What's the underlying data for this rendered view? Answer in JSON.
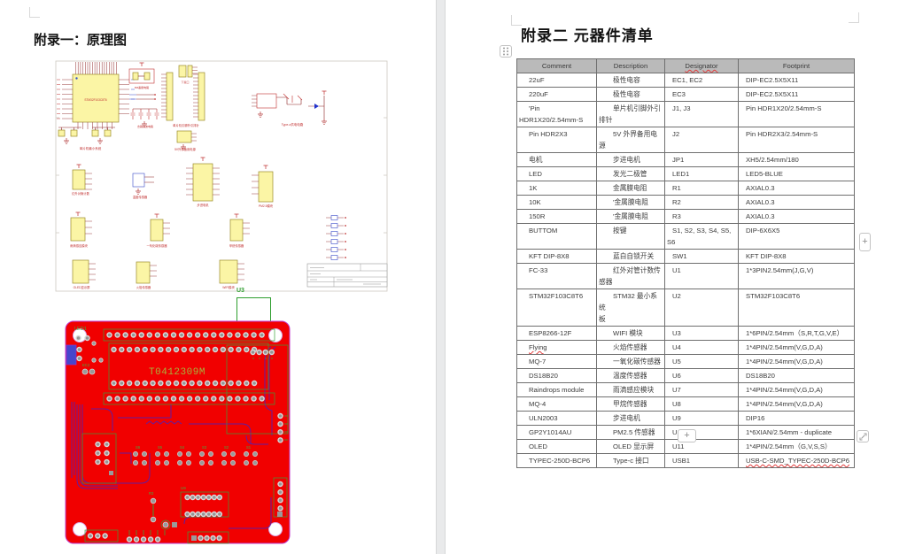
{
  "left_page": {
    "title": "附录一：原理图",
    "schematic": {
      "mcu_label": "STM32F103C8T6",
      "labels": {
        "system": "单片机最小系统",
        "download": "下载口",
        "crystal": "8M晶振电路",
        "decouple": "去耦滤波电路",
        "headers": "单片机引脚外引排针",
        "power5v": "5V外界备用电源",
        "typec": "Type-c供电电路",
        "ir": "红外对管计数",
        "temp": "温度传感器",
        "stepper": "步进电机",
        "pm25": "PM2.5模块",
        "rain": "雨滴感应模块",
        "co": "一氧化碳传感器",
        "methane": "甲烷传感器",
        "keys": "按键电路",
        "oled": "OLED显示屏",
        "flame": "火焰传感器",
        "wifi": "WIFI模块"
      }
    },
    "pcb": {
      "callout": "U3",
      "board_text": "T0412309M",
      "led_label": "LED1",
      "ec2_label": "EC2",
      "u9_label": "U9",
      "r3_label": "R3",
      "button_labels": [
        "S6",
        "S5",
        "S4",
        "S3",
        "S2",
        "S1"
      ]
    }
  },
  "right_page": {
    "title": "附录二 元器件清单",
    "table": {
      "headers": [
        "Comment",
        "Description",
        "Designator",
        "Footprint"
      ],
      "header_misspelled": [
        2
      ],
      "rows": [
        [
          "22uF",
          "极性电容",
          "EC1, EC2",
          "DIP-EC2.5X5X11"
        ],
        [
          "220uF",
          "极性电容",
          "EC3",
          "DIP-EC2.5X5X11"
        ],
        [
          "'Pin\nHDR1X20/2.54mm-S",
          "单片机引脚外引\n排针",
          "J1, J3",
          "Pin HDR1X20/2.54mm-S"
        ],
        [
          "Pin HDR2X3",
          "5V 外界备用电源",
          "J2",
          "Pin HDR2X3/2.54mm-S"
        ],
        [
          "电机",
          "步进电机",
          "JP1",
          "XH5/2.54mm/180"
        ],
        [
          "LED",
          "发光二极管",
          "LED1",
          "LED5-BLUE"
        ],
        [
          "1K",
          "金属膜电阻",
          "R1",
          "AXIAL0.3"
        ],
        [
          "10K",
          "'金属膜电阻",
          "R2",
          "AXIAL0.3"
        ],
        [
          "150R",
          "'金属膜电阻",
          "R3",
          "AXIAL0.3"
        ],
        [
          "BUTTOM",
          "按键",
          "S1, S2, S3, S4, S5,\nS6",
          "DIP-6X6X5"
        ],
        [
          "KFT DIP-8X8",
          "蓝白自锁开关",
          "SW1",
          "KFT DIP-8X8"
        ],
        [
          "FC-33",
          "红外对管计数传\n感器",
          "U1",
          "1*3PIN2.54mm(J,G,V)"
        ],
        [
          "STM32F103C8T6",
          "STM32 最小系统\n板",
          "U2",
          "STM32F103C8T6"
        ],
        [
          "ESP8266-12F",
          "WIFI 模块",
          "U3",
          "1*6PIN/2.54mm（S,R,T,G,V,E）"
        ],
        [
          "Flying",
          "火焰传感器",
          "U4",
          "1*4PIN/2.54mm(V,G,D,A)"
        ],
        [
          "MQ-7",
          "一氧化碳传感器",
          "U5",
          "1*4PIN/2.54mm(V,G,D,A)"
        ],
        [
          "DS18B20",
          "温度传感器",
          "U6",
          "DS18B20"
        ],
        [
          "Raindrops module",
          "雨滴感应模块",
          "U7",
          "1*4PIN/2.54mm(V,G,D,A)"
        ],
        [
          "MQ-4",
          "甲烷传感器",
          "U8",
          "1*4PIN/2.54mm(V,G,D,A)"
        ],
        [
          "ULN2003",
          "步进电机",
          "U9",
          "DIP16"
        ],
        [
          "GP2Y1014AU",
          "PM2.5 传感器",
          "U10",
          "1*6XIAN/2.54mm - duplicate"
        ],
        [
          "OLED",
          "OLED 显示屏",
          "U11",
          "1*4PIN/2.54mm（G,V,S,S）"
        ],
        [
          "TYPEC-250D-BCP6",
          "Type-c 接口",
          "USB1",
          "USB-C-SMD_TYPEC-250D-BCP6"
        ]
      ],
      "misspelled_cells": [
        [
          14,
          0
        ],
        [
          22,
          3
        ]
      ]
    },
    "controls": {
      "add_row_label": "+",
      "add_col_label": "+"
    }
  },
  "colors": {
    "pcb_red": "#f10000",
    "trace_purple": "#5b1fa8",
    "silkscreen_green": "#3aa03a",
    "schematic_yellow": "#fbf5a5",
    "table_header_gray": "#bababa"
  }
}
